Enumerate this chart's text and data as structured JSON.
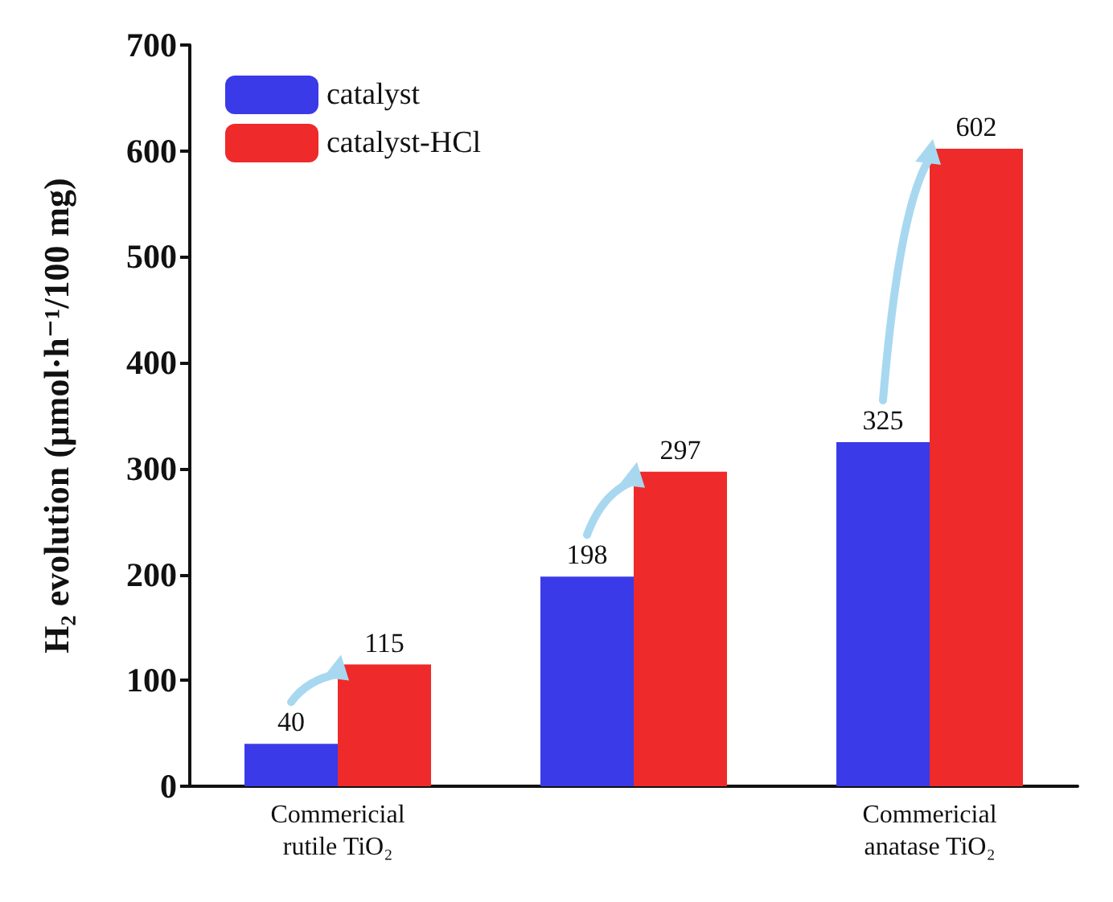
{
  "chart_data": {
    "type": "bar",
    "ylabel": "H₂ evolution (μmol·h⁻¹/100 mg)",
    "categories": [
      "Commericial\nrutile TiO₂",
      null,
      "Commericial\nanatase TiO₂"
    ],
    "series": [
      {
        "name": "catalyst",
        "color": "#3a3ae8",
        "values": [
          40,
          198,
          325
        ]
      },
      {
        "name": "catalyst-HCl",
        "color": "#ee2a2a",
        "values": [
          115,
          297,
          602
        ]
      }
    ],
    "ylim": [
      0,
      700
    ],
    "yticks": [
      0,
      100,
      200,
      300,
      400,
      500,
      600,
      700
    ],
    "data_labels": true,
    "grid": false,
    "legend": "top left"
  }
}
